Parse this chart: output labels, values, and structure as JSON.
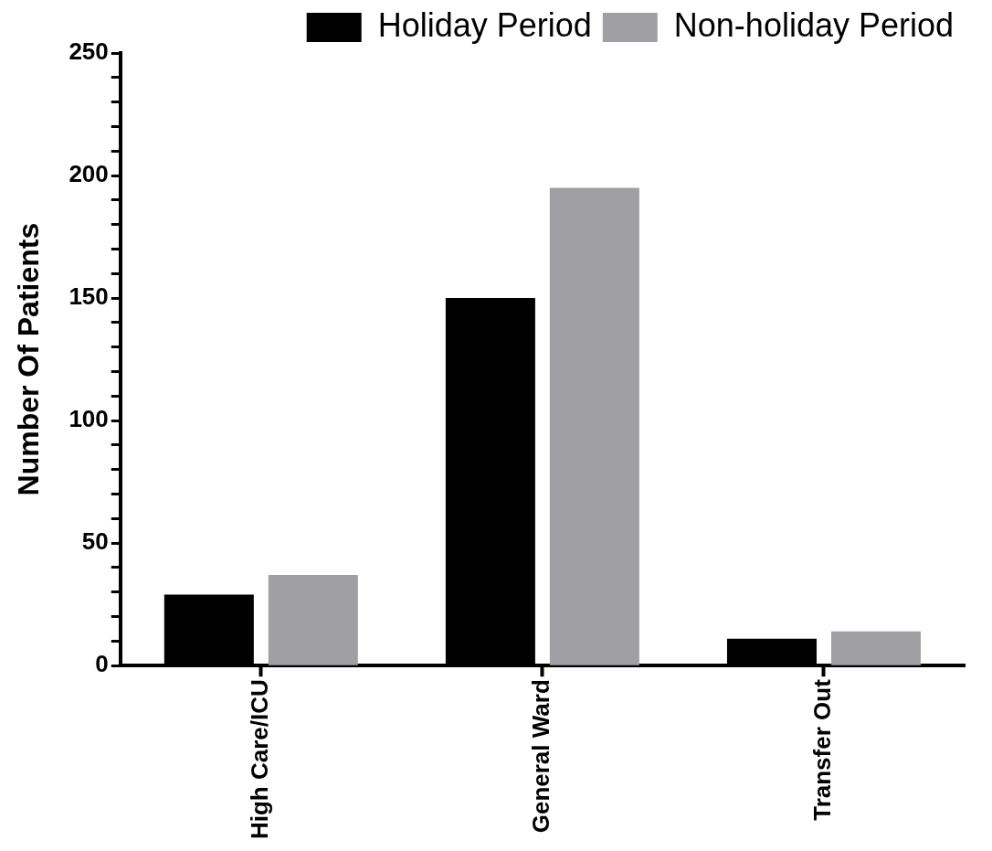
{
  "chart_data": {
    "type": "bar",
    "ylabel": "Number Of Patients",
    "categories": [
      "High Care/ICU",
      "General Ward",
      "Transfer Out"
    ],
    "series": [
      {
        "name": "Holiday Period",
        "color": "#000000",
        "values": [
          29,
          150,
          11
        ]
      },
      {
        "name": "Non-holiday Period",
        "color": "#a0a0a4",
        "values": [
          37,
          195,
          14
        ]
      }
    ],
    "ylim": [
      0,
      250
    ],
    "yticks": [
      0,
      {
        "value": 10,
        "label": null
      },
      {
        "value": 20,
        "label": null
      },
      {
        "value": 30,
        "label": null
      },
      {
        "value": 40,
        "label": null
      },
      50,
      {
        "value": 60,
        "label": null
      },
      {
        "value": 70,
        "label": null
      },
      {
        "value": 80,
        "label": null
      },
      {
        "value": 90,
        "label": null
      },
      100,
      {
        "value": 110,
        "label": null
      },
      {
        "value": 120,
        "label": null
      },
      {
        "value": 130,
        "label": null
      },
      {
        "value": 140,
        "label": null
      },
      150,
      {
        "value": 160,
        "label": null
      },
      {
        "value": 170,
        "label": null
      },
      {
        "value": 180,
        "label": null
      },
      {
        "value": 190,
        "label": null
      },
      200,
      {
        "value": 210,
        "label": null
      },
      {
        "value": 220,
        "label": null
      },
      {
        "value": 230,
        "label": null
      },
      {
        "value": 240,
        "label": null
      },
      250
    ],
    "grid": false,
    "legend": "top right"
  }
}
